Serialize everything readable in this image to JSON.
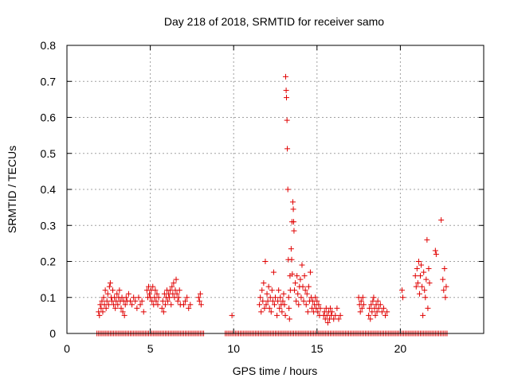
{
  "chart_data": {
    "type": "scatter",
    "title": "Day 218 of 2018, SRMTID for receiver samo",
    "xlabel": "GPS time / hours",
    "ylabel": "SRMTID / TECUs",
    "xlim": [
      0,
      25
    ],
    "ylim": [
      0,
      0.8
    ],
    "xticks": [
      0,
      5,
      10,
      15,
      20
    ],
    "xtick_labels": [
      "0",
      "5",
      "10",
      "15",
      "20"
    ],
    "yticks": [
      0,
      0.1,
      0.2,
      0.3,
      0.4,
      0.5,
      0.6,
      0.7,
      0.8
    ],
    "ytick_labels": [
      "0",
      "0.1",
      "0.2",
      "0.3",
      "0.4",
      "0.5",
      "0.6",
      "0.7",
      "0.8"
    ],
    "grid": true,
    "marker": "+",
    "color": "#e00000",
    "series": [
      {
        "name": "SRMTID",
        "points": [
          [
            1.9,
            0.06
          ],
          [
            1.95,
            0.05
          ],
          [
            2.0,
            0.08
          ],
          [
            2.05,
            0.07
          ],
          [
            2.1,
            0.09
          ],
          [
            2.15,
            0.06
          ],
          [
            2.2,
            0.1
          ],
          [
            2.25,
            0.08
          ],
          [
            2.3,
            0.12
          ],
          [
            2.35,
            0.07
          ],
          [
            2.4,
            0.09
          ],
          [
            2.45,
            0.11
          ],
          [
            2.5,
            0.08
          ],
          [
            2.55,
            0.13
          ],
          [
            2.6,
            0.14
          ],
          [
            2.65,
            0.1
          ],
          [
            2.7,
            0.09
          ],
          [
            2.75,
            0.12
          ],
          [
            2.8,
            0.08
          ],
          [
            2.85,
            0.1
          ],
          [
            2.9,
            0.07
          ],
          [
            2.95,
            0.09
          ],
          [
            3.0,
            0.11
          ],
          [
            3.05,
            0.08
          ],
          [
            3.1,
            0.1
          ],
          [
            3.15,
            0.12
          ],
          [
            3.2,
            0.09
          ],
          [
            3.25,
            0.07
          ],
          [
            3.3,
            0.1
          ],
          [
            3.35,
            0.06
          ],
          [
            3.4,
            0.09
          ],
          [
            3.45,
            0.05
          ],
          [
            3.5,
            0.08
          ],
          [
            3.55,
            0.1
          ],
          [
            3.6,
            0.09
          ],
          [
            3.7,
            0.11
          ],
          [
            3.8,
            0.09
          ],
          [
            3.9,
            0.08
          ],
          [
            4.0,
            0.1
          ],
          [
            4.1,
            0.09
          ],
          [
            4.2,
            0.07
          ],
          [
            4.3,
            0.1
          ],
          [
            4.4,
            0.08
          ],
          [
            4.5,
            0.09
          ],
          [
            4.6,
            0.06
          ],
          [
            4.8,
            0.12
          ],
          [
            4.85,
            0.1
          ],
          [
            4.9,
            0.13
          ],
          [
            4.95,
            0.11
          ],
          [
            5.0,
            0.1
          ],
          [
            5.05,
            0.12
          ],
          [
            5.1,
            0.09
          ],
          [
            5.15,
            0.13
          ],
          [
            5.2,
            0.08
          ],
          [
            5.25,
            0.1
          ],
          [
            5.3,
            0.12
          ],
          [
            5.35,
            0.09
          ],
          [
            5.4,
            0.11
          ],
          [
            5.45,
            0.08
          ],
          [
            5.5,
            0.1
          ],
          [
            5.7,
            0.07
          ],
          [
            5.75,
            0.09
          ],
          [
            5.8,
            0.06
          ],
          [
            5.85,
            0.11
          ],
          [
            5.9,
            0.08
          ],
          [
            5.95,
            0.1
          ],
          [
            6.0,
            0.12
          ],
          [
            6.05,
            0.09
          ],
          [
            6.1,
            0.11
          ],
          [
            6.15,
            0.1
          ],
          [
            6.2,
            0.12
          ],
          [
            6.25,
            0.08
          ],
          [
            6.3,
            0.13
          ],
          [
            6.35,
            0.11
          ],
          [
            6.4,
            0.14
          ],
          [
            6.45,
            0.1
          ],
          [
            6.5,
            0.12
          ],
          [
            6.55,
            0.15
          ],
          [
            6.6,
            0.11
          ],
          [
            6.65,
            0.09
          ],
          [
            6.7,
            0.1
          ],
          [
            6.75,
            0.12
          ],
          [
            6.8,
            0.08
          ],
          [
            7.0,
            0.08
          ],
          [
            7.1,
            0.09
          ],
          [
            7.2,
            0.1
          ],
          [
            7.3,
            0.07
          ],
          [
            7.4,
            0.08
          ],
          [
            7.9,
            0.1
          ],
          [
            7.95,
            0.09
          ],
          [
            8.0,
            0.11
          ],
          [
            8.05,
            0.08
          ],
          [
            9.9,
            0.05
          ],
          [
            11.55,
            0.08
          ],
          [
            11.6,
            0.1
          ],
          [
            11.65,
            0.06
          ],
          [
            11.7,
            0.12
          ],
          [
            11.75,
            0.09
          ],
          [
            11.8,
            0.14
          ],
          [
            11.85,
            0.07
          ],
          [
            11.9,
            0.2
          ],
          [
            11.95,
            0.08
          ],
          [
            12.0,
            0.11
          ],
          [
            12.05,
            0.09
          ],
          [
            12.1,
            0.13
          ],
          [
            12.15,
            0.07
          ],
          [
            12.2,
            0.1
          ],
          [
            12.25,
            0.06
          ],
          [
            12.3,
            0.12
          ],
          [
            12.35,
            0.09
          ],
          [
            12.4,
            0.17
          ],
          [
            12.45,
            0.08
          ],
          [
            12.5,
            0.1
          ],
          [
            12.6,
            0.05
          ],
          [
            12.65,
            0.09
          ],
          [
            12.7,
            0.12
          ],
          [
            12.75,
            0.07
          ],
          [
            12.8,
            0.1
          ],
          [
            12.85,
            0.08
          ],
          [
            12.9,
            0.06
          ],
          [
            12.95,
            0.09
          ],
          [
            13.0,
            0.11
          ],
          [
            13.05,
            0.08
          ],
          [
            13.1,
            0.05
          ],
          [
            13.12,
            0.713
          ],
          [
            13.15,
            0.675
          ],
          [
            13.17,
            0.655
          ],
          [
            13.2,
            0.592
          ],
          [
            13.22,
            0.513
          ],
          [
            13.25,
            0.4
          ],
          [
            13.28,
            0.205
          ],
          [
            13.3,
            0.1
          ],
          [
            13.32,
            0.07
          ],
          [
            13.35,
            0.04
          ],
          [
            13.38,
            0.16
          ],
          [
            13.4,
            0.12
          ],
          [
            13.45,
            0.235
          ],
          [
            13.48,
            0.205
          ],
          [
            13.5,
            0.31
          ],
          [
            13.52,
            0.165
          ],
          [
            13.55,
            0.365
          ],
          [
            13.58,
            0.345
          ],
          [
            13.6,
            0.31
          ],
          [
            13.62,
            0.285
          ],
          [
            13.65,
            0.12
          ],
          [
            13.7,
            0.14
          ],
          [
            13.75,
            0.09
          ],
          [
            13.8,
            0.16
          ],
          [
            13.85,
            0.11
          ],
          [
            13.9,
            0.08
          ],
          [
            13.95,
            0.13
          ],
          [
            14.0,
            0.15
          ],
          [
            14.05,
            0.1
          ],
          [
            14.1,
            0.19
          ],
          [
            14.15,
            0.13
          ],
          [
            14.2,
            0.09
          ],
          [
            14.25,
            0.16
          ],
          [
            14.3,
            0.12
          ],
          [
            14.35,
            0.08
          ],
          [
            14.4,
            0.11
          ],
          [
            14.45,
            0.06
          ],
          [
            14.5,
            0.13
          ],
          [
            14.55,
            0.09
          ],
          [
            14.6,
            0.17
          ],
          [
            14.65,
            0.1
          ],
          [
            14.7,
            0.07
          ],
          [
            14.75,
            0.09
          ],
          [
            14.8,
            0.06
          ],
          [
            14.85,
            0.08
          ],
          [
            14.9,
            0.1
          ],
          [
            14.95,
            0.07
          ],
          [
            15.0,
            0.09
          ],
          [
            15.05,
            0.06
          ],
          [
            15.1,
            0.08
          ],
          [
            15.15,
            0.05
          ],
          [
            15.2,
            0.07
          ],
          [
            15.4,
            0.05
          ],
          [
            15.45,
            0.06
          ],
          [
            15.5,
            0.04
          ],
          [
            15.55,
            0.07
          ],
          [
            15.6,
            0.05
          ],
          [
            15.65,
            0.03
          ],
          [
            15.7,
            0.06
          ],
          [
            15.75,
            0.04
          ],
          [
            15.8,
            0.07
          ],
          [
            15.85,
            0.05
          ],
          [
            15.9,
            0.06
          ],
          [
            16.0,
            0.04
          ],
          [
            16.1,
            0.05
          ],
          [
            16.2,
            0.07
          ],
          [
            16.3,
            0.04
          ],
          [
            16.4,
            0.05
          ],
          [
            17.5,
            0.1
          ],
          [
            17.55,
            0.08
          ],
          [
            17.6,
            0.06
          ],
          [
            17.65,
            0.09
          ],
          [
            17.7,
            0.07
          ],
          [
            17.75,
            0.1
          ],
          [
            17.8,
            0.08
          ],
          [
            18.1,
            0.05
          ],
          [
            18.15,
            0.07
          ],
          [
            18.2,
            0.04
          ],
          [
            18.25,
            0.08
          ],
          [
            18.3,
            0.06
          ],
          [
            18.35,
            0.09
          ],
          [
            18.4,
            0.1
          ],
          [
            18.45,
            0.07
          ],
          [
            18.5,
            0.05
          ],
          [
            18.55,
            0.08
          ],
          [
            18.6,
            0.06
          ],
          [
            18.65,
            0.09
          ],
          [
            18.7,
            0.07
          ],
          [
            18.8,
            0.08
          ],
          [
            18.9,
            0.06
          ],
          [
            19.0,
            0.07
          ],
          [
            19.1,
            0.05
          ],
          [
            19.2,
            0.06
          ],
          [
            20.1,
            0.12
          ],
          [
            20.15,
            0.1
          ],
          [
            20.9,
            0.16
          ],
          [
            20.95,
            0.13
          ],
          [
            21.0,
            0.18
          ],
          [
            21.05,
            0.14
          ],
          [
            21.1,
            0.2
          ],
          [
            21.15,
            0.11
          ],
          [
            21.2,
            0.16
          ],
          [
            21.25,
            0.19
          ],
          [
            21.3,
            0.13
          ],
          [
            21.35,
            0.05
          ],
          [
            21.4,
            0.17
          ],
          [
            21.45,
            0.12
          ],
          [
            21.5,
            0.1
          ],
          [
            21.55,
            0.15
          ],
          [
            21.6,
            0.26
          ],
          [
            21.65,
            0.07
          ],
          [
            21.7,
            0.18
          ],
          [
            21.75,
            0.14
          ],
          [
            22.1,
            0.23
          ],
          [
            22.15,
            0.22
          ],
          [
            22.45,
            0.315
          ],
          [
            22.55,
            0.15
          ],
          [
            22.6,
            0.12
          ],
          [
            22.65,
            0.18
          ],
          [
            22.7,
            0.1
          ],
          [
            22.75,
            0.13
          ]
        ],
        "zero_band": [
          [
            1.8,
            8.2
          ],
          [
            9.5,
            22.8
          ]
        ]
      }
    ]
  }
}
